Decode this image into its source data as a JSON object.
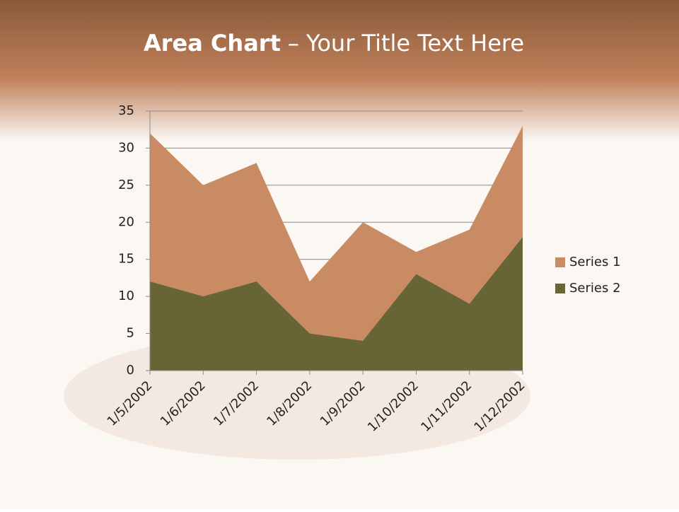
{
  "chart_data": {
    "type": "area",
    "stacked": false,
    "title": [
      "Area Chart",
      "– Your Title Text Here"
    ],
    "categories": [
      "1/5/2002",
      "1/6/2002",
      "1/7/2002",
      "1/8/2002",
      "1/9/2002",
      "1/10/2002",
      "1/11/2002",
      "1/12/2002"
    ],
    "series": [
      {
        "name": "Series 1",
        "color": "#c98b63",
        "values": [
          32,
          25,
          28,
          12,
          20,
          16,
          19,
          33
        ]
      },
      {
        "name": "Series 2",
        "color": "#676535",
        "values": [
          12,
          10,
          12,
          5,
          4,
          13,
          9,
          18
        ]
      }
    ],
    "ylim": [
      0,
      35
    ],
    "yticks": [
      0,
      5,
      10,
      15,
      20,
      25,
      30,
      35
    ],
    "grid": true,
    "legend": "right"
  }
}
